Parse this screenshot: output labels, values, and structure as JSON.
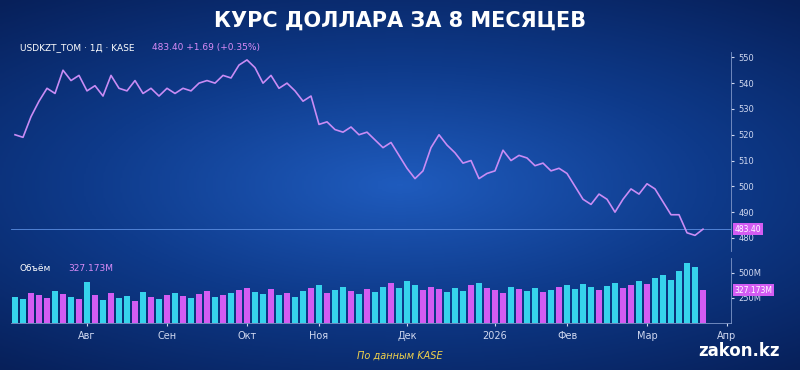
{
  "chart_data": [
    {
      "type": "line",
      "title": "КУРС ДОЛЛАРА ЗА 8 МЕСЯЦЕВ",
      "subtitle": "USDKZT_TOM · 1Д · KASE",
      "quote": "483.40 +1.69 (+0.35%)",
      "last_label": {
        "text": "483.40",
        "y": 483.4
      },
      "color": "#c98cf5",
      "values": [
        520,
        519,
        527,
        533,
        538,
        536,
        545,
        541,
        543,
        537,
        539,
        535,
        543,
        538,
        537,
        541,
        536,
        538,
        535,
        538,
        536,
        538,
        537,
        540,
        541,
        540,
        543,
        542,
        547,
        549,
        546,
        540,
        543,
        538,
        540,
        537,
        533,
        535,
        524,
        525,
        522,
        521,
        523,
        520,
        521,
        518,
        515,
        517,
        512,
        507,
        503,
        506,
        515,
        520,
        516,
        513,
        509,
        510,
        503,
        505,
        506,
        514,
        510,
        512,
        511,
        508,
        509,
        506,
        507,
        505,
        500,
        495,
        493,
        497,
        495,
        490,
        495,
        499,
        497,
        501,
        499,
        494,
        489,
        489,
        482,
        481,
        483.4,
        null,
        null,
        null
      ],
      "ylim": [
        475,
        552
      ],
      "yticks": [
        480,
        490,
        500,
        510,
        520,
        530,
        540,
        550
      ],
      "grid": false,
      "tick_labels": "y"
    },
    {
      "type": "bar",
      "title": "Объём",
      "quote": "327.173M",
      "last_label": {
        "text": "327.173M",
        "y": 327.173
      },
      "caption": "По данным KASE",
      "brand": "zakon.kz",
      "categories": [
        null,
        null,
        null,
        null,
        null,
        null,
        null,
        null,
        null,
        "Авг",
        null,
        null,
        null,
        null,
        null,
        null,
        null,
        null,
        null,
        "Сен",
        null,
        null,
        null,
        null,
        null,
        null,
        null,
        null,
        null,
        "Окт",
        null,
        null,
        null,
        null,
        null,
        null,
        null,
        null,
        "Ноя",
        null,
        null,
        null,
        null,
        null,
        null,
        null,
        null,
        null,
        null,
        "Дек",
        null,
        null,
        null,
        null,
        null,
        null,
        null,
        null,
        null,
        null,
        "2026",
        null,
        null,
        null,
        null,
        null,
        null,
        null,
        null,
        "Фев",
        null,
        null,
        null,
        null,
        null,
        null,
        null,
        null,
        null,
        "Мар",
        null,
        null,
        null,
        null,
        null,
        null,
        null,
        null,
        null,
        "Апр"
      ],
      "values": [
        260,
        240,
        300,
        280,
        250,
        320,
        290,
        260,
        240,
        410,
        280,
        230,
        300,
        250,
        270,
        220,
        310,
        260,
        240,
        280,
        300,
        270,
        250,
        290,
        320,
        260,
        280,
        300,
        330,
        350,
        310,
        290,
        340,
        280,
        300,
        260,
        320,
        350,
        380,
        300,
        330,
        360,
        320,
        290,
        340,
        310,
        360,
        400,
        350,
        420,
        380,
        330,
        360,
        340,
        310,
        350,
        320,
        380,
        400,
        350,
        330,
        300,
        360,
        340,
        320,
        350,
        310,
        330,
        360,
        380,
        340,
        390,
        360,
        330,
        370,
        400,
        350,
        380,
        420,
        390,
        450,
        480,
        430,
        520,
        600,
        560,
        327.173,
        null,
        null,
        null
      ],
      "colors": [
        "#36d3ec",
        "#36d3ec",
        "#d35cf2",
        "#d35cf2",
        "#d35cf2",
        "#36d3ec",
        "#d35cf2",
        "#36d3ec",
        "#d35cf2",
        "#36d3ec",
        "#d35cf2",
        "#36d3ec",
        "#d35cf2",
        "#36d3ec",
        "#36d3ec",
        "#d35cf2",
        "#36d3ec",
        "#d35cf2",
        "#36d3ec",
        "#d35cf2",
        "#36d3ec",
        "#d35cf2",
        "#36d3ec",
        "#d35cf2",
        "#d35cf2",
        "#36d3ec",
        "#d35cf2",
        "#36d3ec",
        "#d35cf2",
        "#d35cf2",
        "#36d3ec",
        "#36d3ec",
        "#d35cf2",
        "#36d3ec",
        "#d35cf2",
        "#36d3ec",
        "#36d3ec",
        "#d35cf2",
        "#36d3ec",
        "#d35cf2",
        "#36d3ec",
        "#36d3ec",
        "#d35cf2",
        "#36d3ec",
        "#d35cf2",
        "#36d3ec",
        "#36d3ec",
        "#d35cf2",
        "#36d3ec",
        "#36d3ec",
        "#36d3ec",
        "#d35cf2",
        "#d35cf2",
        "#d35cf2",
        "#36d3ec",
        "#36d3ec",
        "#36d3ec",
        "#d35cf2",
        "#36d3ec",
        "#d35cf2",
        "#d35cf2",
        "#d35cf2",
        "#36d3ec",
        "#d35cf2",
        "#36d3ec",
        "#36d3ec",
        "#d35cf2",
        "#36d3ec",
        "#d35cf2",
        "#36d3ec",
        "#36d3ec",
        "#36d3ec",
        "#36d3ec",
        "#d35cf2",
        "#36d3ec",
        "#36d3ec",
        "#d35cf2",
        "#d35cf2",
        "#36d3ec",
        "#d35cf2",
        "#36d3ec",
        "#36d3ec",
        "#36d3ec",
        "#36d3ec",
        "#36d3ec",
        "#36d3ec",
        "#d35cf2",
        "#36d3ec",
        "#36d3ec",
        "#36d3ec"
      ],
      "ylim": [
        0,
        650
      ],
      "yticks": [
        {
          "value": 250,
          "label": "250M"
        },
        {
          "value": 500,
          "label": "500M"
        }
      ],
      "grid": false
    }
  ]
}
